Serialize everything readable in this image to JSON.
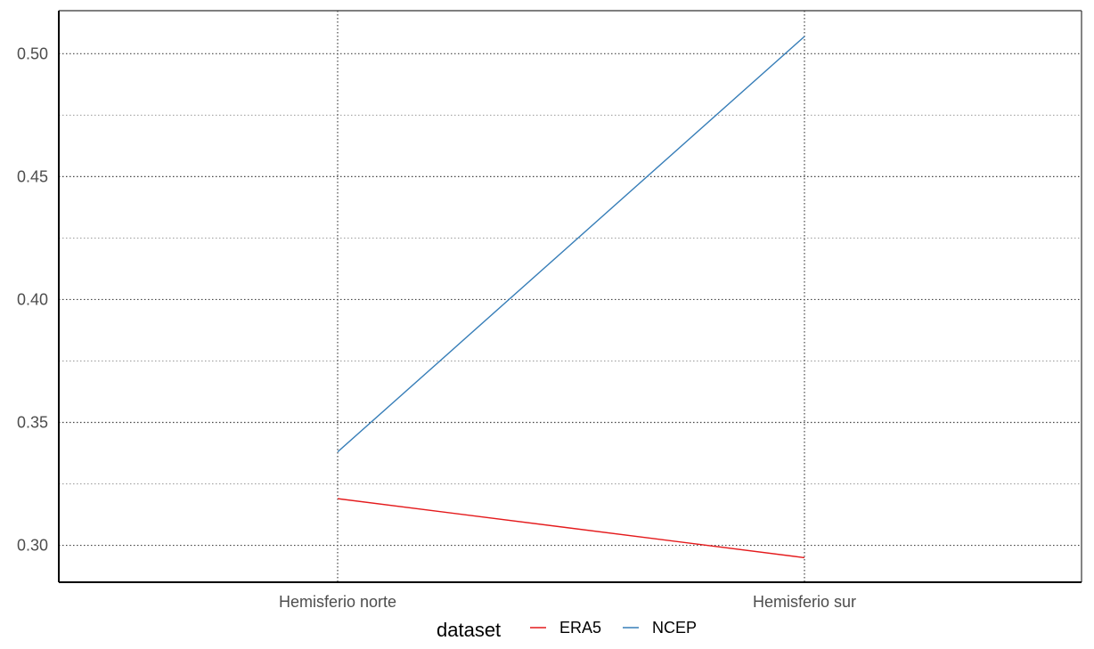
{
  "chart_data": {
    "type": "line",
    "categories": [
      "Hemisferio norte",
      "Hemisferio sur"
    ],
    "series": [
      {
        "name": "ERA5",
        "values": [
          0.319,
          0.295
        ],
        "color": "#e41a1c"
      },
      {
        "name": "NCEP",
        "values": [
          0.338,
          0.507
        ],
        "color": "#377eb8"
      }
    ],
    "ylim": [
      0.285,
      0.5175
    ],
    "yticks": [
      0.3,
      0.35,
      0.4,
      0.45,
      0.5
    ],
    "ytick_labels": [
      "0.30",
      "0.35",
      "0.40",
      "0.45",
      "0.50"
    ],
    "yminor": [
      0.325,
      0.375,
      0.425,
      0.475
    ],
    "grid": true,
    "legend": {
      "title": "dataset",
      "position": "bottom"
    },
    "title": "",
    "xlabel": "",
    "ylabel": ""
  }
}
